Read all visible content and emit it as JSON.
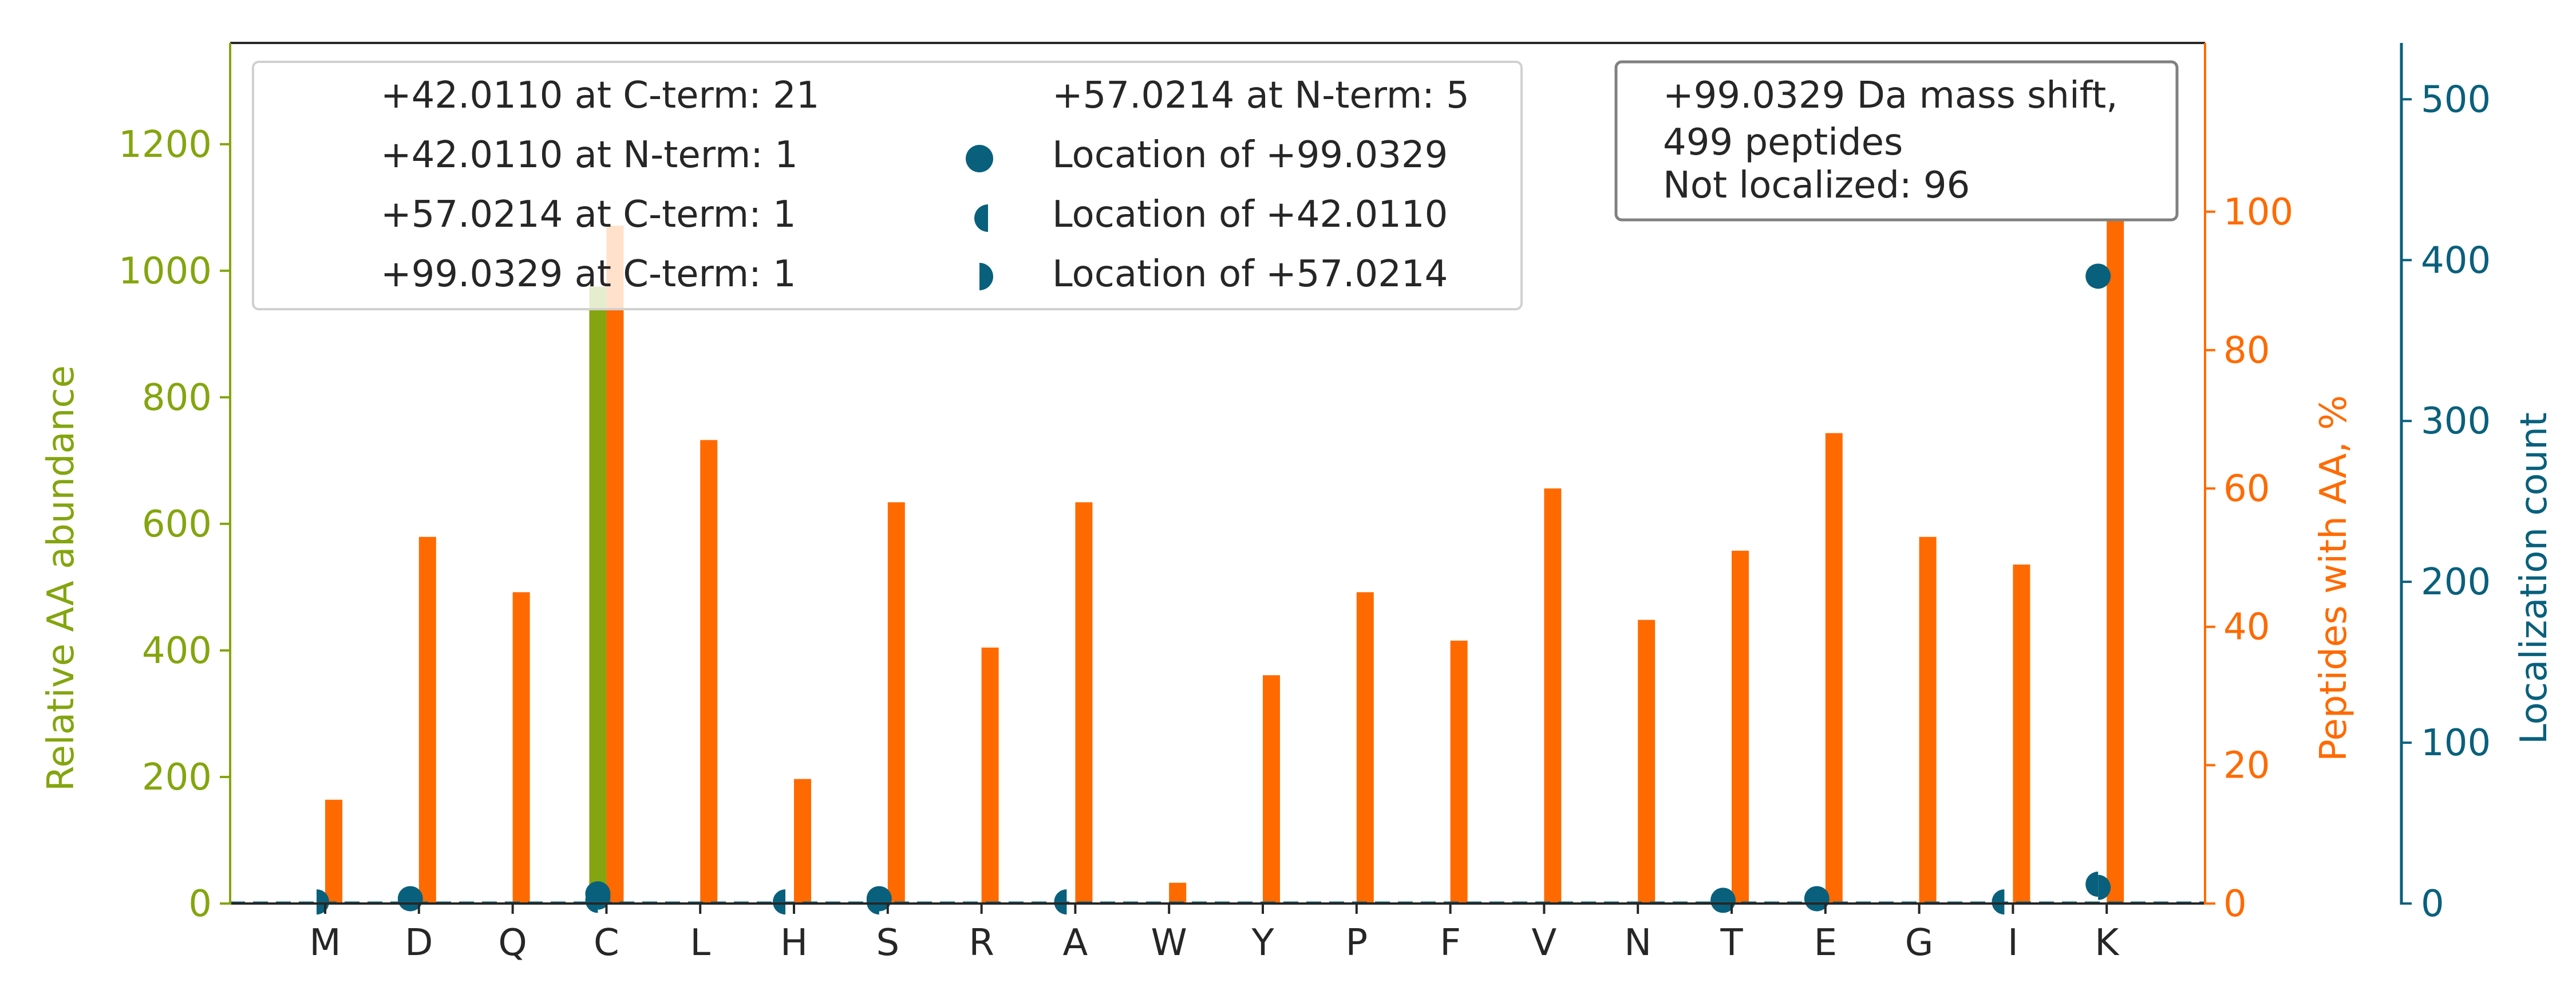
{
  "chart_data": {
    "type": "bar",
    "categories": [
      "M",
      "D",
      "Q",
      "C",
      "L",
      "H",
      "S",
      "R",
      "A",
      "W",
      "Y",
      "P",
      "F",
      "V",
      "N",
      "T",
      "E",
      "G",
      "I",
      "K"
    ],
    "colors": {
      "abundance": "#84a50f",
      "peptides": "#ff6a00",
      "localization": "#09607c",
      "axis": "#262626"
    },
    "axes": {
      "left": {
        "label": "Relative AA abundance",
        "ylim": [
          0,
          1360
        ],
        "ticks": [
          0,
          200,
          400,
          600,
          800,
          1000,
          1200
        ]
      },
      "right1": {
        "label": "Peptides with AA, %",
        "ylim": [
          0,
          124.4
        ],
        "ticks": [
          0,
          20,
          40,
          60,
          80,
          100
        ]
      },
      "right2": {
        "label": "Localization count",
        "ylim": [
          0,
          535
        ],
        "ticks": [
          0,
          100,
          200,
          300,
          400,
          500
        ]
      }
    },
    "series": [
      {
        "name": "Relative AA abundance",
        "axis": "left",
        "values": [
          0,
          0,
          0,
          975,
          0,
          0,
          0,
          0,
          0,
          0,
          0,
          0,
          0,
          0,
          0,
          0,
          0,
          0,
          0,
          0
        ]
      },
      {
        "name": "Peptides with AA, %",
        "axis": "right1",
        "values": [
          15,
          53,
          45,
          98,
          67,
          18,
          58,
          37,
          58,
          3,
          33,
          45,
          38,
          60,
          41,
          51,
          68,
          53,
          49,
          100
        ]
      },
      {
        "name": "Location of +99.0329",
        "axis": "right2",
        "marker": "circle",
        "values": [
          0,
          3,
          0,
          6,
          0,
          0,
          3,
          0,
          0,
          0,
          0,
          0,
          0,
          0,
          0,
          2,
          3,
          0,
          0,
          390
        ]
      },
      {
        "name": "Location of +42.0110",
        "axis": "right2",
        "marker": "left-half-circle",
        "values": [
          0,
          0,
          0,
          2,
          0,
          1,
          1,
          0,
          1,
          0,
          0,
          0,
          0,
          0,
          0,
          0,
          0,
          0,
          1,
          12
        ]
      },
      {
        "name": "Location of +57.0214",
        "axis": "right2",
        "marker": "right-half-circle",
        "values": [
          1,
          0,
          0,
          4,
          0,
          0,
          0,
          0,
          0,
          0,
          0,
          0,
          0,
          0,
          0,
          0,
          0,
          0,
          0,
          10
        ]
      }
    ],
    "legend": {
      "placement": "top-left",
      "entries": [
        "+42.0110 at C-term: 21",
        "+42.0110 at N-term: 1",
        "+57.0214 at C-term: 1",
        "+99.0329 at C-term: 1",
        "+57.0214 at N-term: 5",
        "Location of +99.0329",
        "Location of +42.0110",
        "Location of +57.0214"
      ]
    },
    "annotation": [
      "+99.0329 Da mass shift,",
      "499 peptides",
      "Not localized: 96"
    ]
  }
}
